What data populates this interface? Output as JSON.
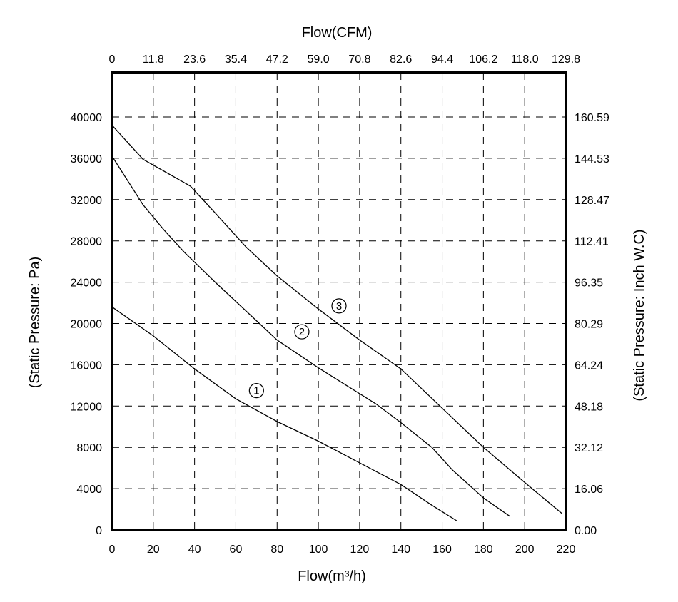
{
  "chart_data": {
    "type": "line",
    "title": "",
    "xlabel": "Flow(m³/h)",
    "x2label": "Flow(CFM)",
    "ylabel": "(Static Pressure: Pa)",
    "y2label": "(Static Pressure: Inch W.C)",
    "xlim": [
      0,
      220
    ],
    "ylim": [
      0,
      44000
    ],
    "grid": true,
    "x_ticks": [
      "0",
      "20",
      "40",
      "60",
      "80",
      "100",
      "120",
      "140",
      "160",
      "180",
      "200",
      "220"
    ],
    "x2_ticks": [
      "0",
      "11.8",
      "23.6",
      "35.4",
      "47.2",
      "59.0",
      "70.8",
      "82.6",
      "94.4",
      "106.2",
      "118.0",
      "129.8"
    ],
    "y_ticks": [
      "0",
      "4000",
      "8000",
      "12000",
      "16000",
      "20000",
      "24000",
      "28000",
      "32000",
      "36000",
      "40000"
    ],
    "y2_ticks": [
      "0.00",
      "16.06",
      "32.12",
      "48.18",
      "64.24",
      "80.29",
      "96.35",
      "112.41",
      "128.47",
      "144.53",
      "160.59"
    ],
    "series": [
      {
        "marker_label": "①",
        "label_at": [
          70,
          13500
        ],
        "points": [
          [
            0,
            21600
          ],
          [
            20,
            18800
          ],
          [
            40,
            15600
          ],
          [
            60,
            12700
          ],
          [
            80,
            10500
          ],
          [
            100,
            8600
          ],
          [
            120,
            6500
          ],
          [
            140,
            4400
          ],
          [
            155,
            2400
          ],
          [
            167,
            900
          ]
        ]
      },
      {
        "marker_label": "②",
        "label_at": [
          92,
          19200
        ],
        "points": [
          [
            0,
            36200
          ],
          [
            15,
            31500
          ],
          [
            25,
            29100
          ],
          [
            35,
            26900
          ],
          [
            50,
            24000
          ],
          [
            65,
            21200
          ],
          [
            80,
            18400
          ],
          [
            100,
            15700
          ],
          [
            128,
            12200
          ],
          [
            140,
            10400
          ],
          [
            155,
            8000
          ],
          [
            165,
            5800
          ],
          [
            180,
            3100
          ],
          [
            193,
            1300
          ]
        ]
      },
      {
        "marker_label": "③",
        "label_at": [
          110,
          21700
        ],
        "points": [
          [
            0,
            39200
          ],
          [
            15,
            35900
          ],
          [
            38,
            33300
          ],
          [
            50,
            30700
          ],
          [
            65,
            27400
          ],
          [
            80,
            24600
          ],
          [
            100,
            21400
          ],
          [
            120,
            18400
          ],
          [
            140,
            15600
          ],
          [
            160,
            11800
          ],
          [
            180,
            8000
          ],
          [
            200,
            4600
          ],
          [
            218,
            1600
          ]
        ]
      }
    ]
  }
}
